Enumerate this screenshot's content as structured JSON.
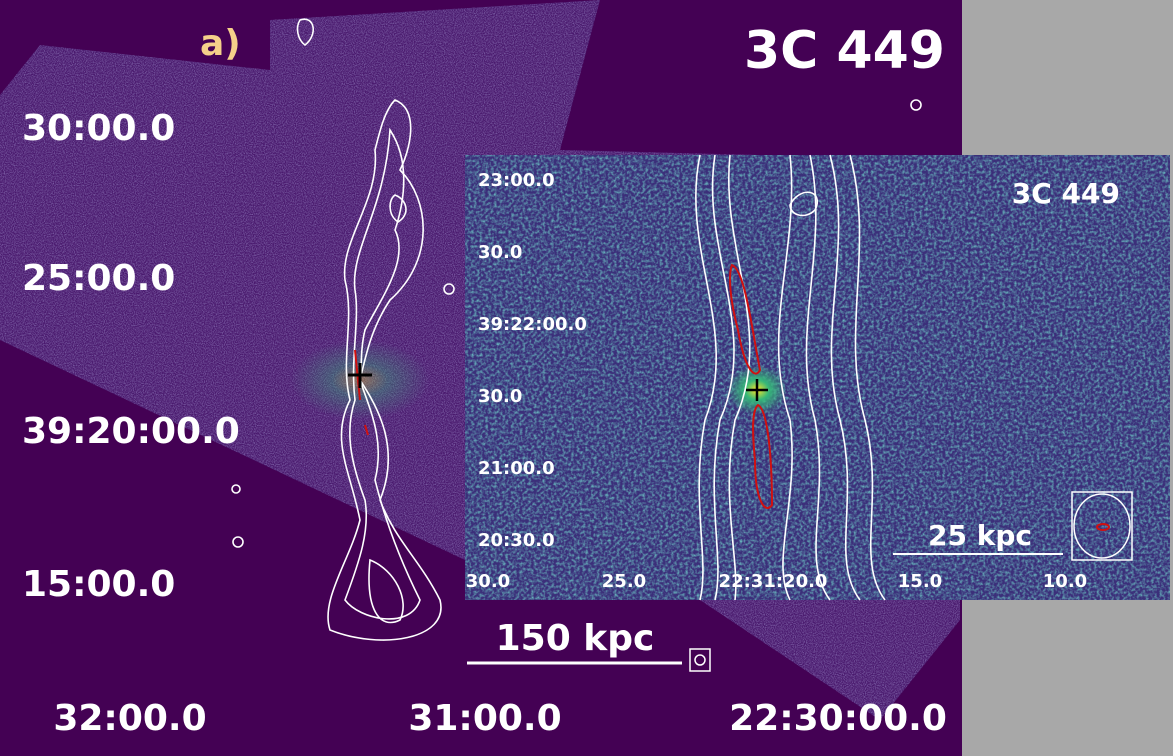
{
  "panel_label": "a)",
  "title": "3C 449",
  "main": {
    "y_labels": [
      "30:00.0",
      "25:00.0",
      "39:20:00.0",
      "15:00.0"
    ],
    "x_labels": [
      "32:00.0",
      "31:00.0",
      "22:30:00.0"
    ],
    "scale_bar": "150 kpc"
  },
  "inset": {
    "title": "3C 449",
    "y_labels": [
      "23:00.0",
      "30.0",
      "39:22:00.0",
      "30.0",
      "21:00.0",
      "20:30.0"
    ],
    "x_labels": [
      "30.0",
      "25.0",
      "22:31:20.0",
      "15.0",
      "10.0"
    ],
    "scale_bar": "25 kpc"
  }
}
